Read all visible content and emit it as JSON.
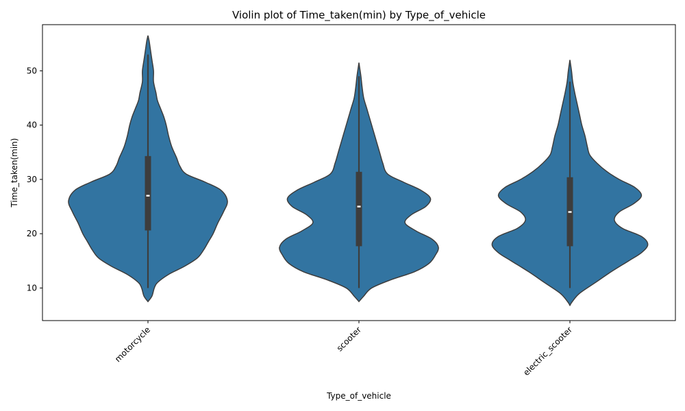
{
  "chart_data": {
    "type": "violin",
    "title": "Violin plot of Time_taken(min) by Type_of_vehicle",
    "xlabel": "Type_of_vehicle",
    "ylabel": "Time_taken(min)",
    "ylim": [
      4,
      58.5
    ],
    "yticks": [
      10,
      20,
      30,
      40,
      50
    ],
    "grid": false,
    "legend": "none",
    "colors": {
      "fill": "#3274a1",
      "edge": "#3d3d3d",
      "box": "#3d3d3d",
      "median": "#ffffff"
    },
    "categories": [
      "motorcycle",
      "scooter",
      "electric_scooter"
    ],
    "series": [
      {
        "category": "motorcycle",
        "whisker": [
          10,
          53
        ],
        "q1": 20.6,
        "median": 27,
        "q3": 34.3,
        "density": [
          [
            7.5,
            0
          ],
          [
            8.5,
            0.05
          ],
          [
            10.0,
            0.08
          ],
          [
            11.0,
            0.12
          ],
          [
            12.5,
            0.26
          ],
          [
            14.0,
            0.46
          ],
          [
            15.5,
            0.62
          ],
          [
            17.0,
            0.7
          ],
          [
            18.5,
            0.76
          ],
          [
            20.0,
            0.82
          ],
          [
            22.0,
            0.88
          ],
          [
            24.0,
            0.95
          ],
          [
            26.0,
            1.0
          ],
          [
            28.0,
            0.92
          ],
          [
            29.5,
            0.72
          ],
          [
            31.0,
            0.48
          ],
          [
            32.5,
            0.4
          ],
          [
            34.0,
            0.36
          ],
          [
            36.0,
            0.3
          ],
          [
            38.0,
            0.26
          ],
          [
            40.0,
            0.23
          ],
          [
            41.5,
            0.2
          ],
          [
            43.0,
            0.16
          ],
          [
            44.5,
            0.12
          ],
          [
            46.0,
            0.1
          ],
          [
            48.0,
            0.07
          ],
          [
            50.0,
            0.07
          ],
          [
            52.0,
            0.05
          ],
          [
            54.0,
            0.03
          ],
          [
            55.5,
            0.015
          ],
          [
            56.5,
            0
          ]
        ]
      },
      {
        "category": "scooter",
        "whisker": [
          10,
          49
        ],
        "q1": 17.7,
        "median": 25,
        "q3": 31.4,
        "density": [
          [
            7.5,
            0
          ],
          [
            8.5,
            0.06
          ],
          [
            10.0,
            0.16
          ],
          [
            11.5,
            0.4
          ],
          [
            13.0,
            0.7
          ],
          [
            14.5,
            0.88
          ],
          [
            16.0,
            0.96
          ],
          [
            17.5,
            1.0
          ],
          [
            19.0,
            0.92
          ],
          [
            20.5,
            0.72
          ],
          [
            22.0,
            0.58
          ],
          [
            23.5,
            0.66
          ],
          [
            25.0,
            0.84
          ],
          [
            26.5,
            0.9
          ],
          [
            28.0,
            0.78
          ],
          [
            29.5,
            0.56
          ],
          [
            31.0,
            0.36
          ],
          [
            33.0,
            0.3
          ],
          [
            35.0,
            0.26
          ],
          [
            37.0,
            0.22
          ],
          [
            39.0,
            0.18
          ],
          [
            41.0,
            0.14
          ],
          [
            43.0,
            0.1
          ],
          [
            45.0,
            0.06
          ],
          [
            47.0,
            0.04
          ],
          [
            49.0,
            0.025
          ],
          [
            50.5,
            0.01
          ],
          [
            51.5,
            0
          ]
        ]
      },
      {
        "category": "electric_scooter",
        "whisker": [
          10,
          48
        ],
        "q1": 17.7,
        "median": 24,
        "q3": 30.4,
        "density": [
          [
            6.8,
            0
          ],
          [
            7.5,
            0.03
          ],
          [
            9.0,
            0.12
          ],
          [
            11.0,
            0.32
          ],
          [
            13.0,
            0.52
          ],
          [
            15.0,
            0.74
          ],
          [
            16.5,
            0.9
          ],
          [
            18.0,
            0.98
          ],
          [
            19.5,
            0.9
          ],
          [
            21.0,
            0.66
          ],
          [
            22.5,
            0.56
          ],
          [
            24.0,
            0.62
          ],
          [
            25.5,
            0.8
          ],
          [
            27.0,
            0.9
          ],
          [
            28.5,
            0.82
          ],
          [
            30.0,
            0.62
          ],
          [
            31.5,
            0.46
          ],
          [
            33.0,
            0.34
          ],
          [
            34.5,
            0.25
          ],
          [
            36.0,
            0.22
          ],
          [
            38.0,
            0.19
          ],
          [
            40.0,
            0.15
          ],
          [
            42.0,
            0.12
          ],
          [
            44.0,
            0.09
          ],
          [
            46.0,
            0.06
          ],
          [
            48.0,
            0.035
          ],
          [
            50.0,
            0.02
          ],
          [
            52.0,
            0
          ]
        ]
      }
    ]
  }
}
